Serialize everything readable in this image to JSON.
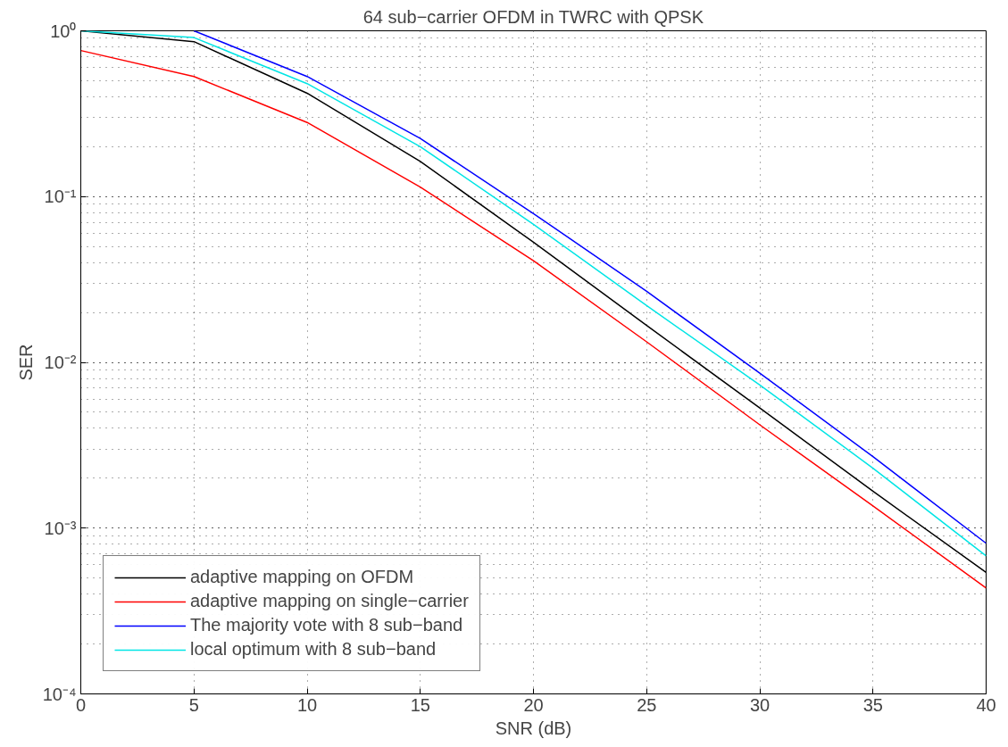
{
  "chart_data": {
    "type": "line",
    "title": "64 sub−carrier OFDM in TWRC with QPSK",
    "xlabel": "SNR (dB)",
    "ylabel": "SER",
    "x": [
      0,
      5,
      10,
      15,
      20,
      25,
      30,
      35,
      40
    ],
    "series": [
      {
        "name": "adaptive mapping on OFDM",
        "color": "#000000",
        "values": [
          1.0,
          0.86,
          0.42,
          0.163,
          0.053,
          0.0167,
          0.0053,
          0.00167,
          0.00054
        ]
      },
      {
        "name": "adaptive mapping on single−carrier",
        "color": "#ff0000",
        "values": [
          0.76,
          0.53,
          0.28,
          0.114,
          0.041,
          0.0133,
          0.0042,
          0.00136,
          0.000435
        ]
      },
      {
        "name": "The majority vote with 8 sub−band",
        "color": "#0000ff",
        "values": [
          null,
          1.0,
          0.53,
          0.224,
          0.079,
          0.0268,
          0.0086,
          0.0027,
          0.00081
        ]
      },
      {
        "name": "local optimum with 8 sub−band",
        "color": "#00e5e5",
        "values": [
          1.0,
          0.91,
          0.48,
          0.2,
          0.068,
          0.022,
          0.0073,
          0.0023,
          0.00068
        ]
      }
    ],
    "log": "y",
    "xlim": [
      0,
      40
    ],
    "ylim": [
      0.0001,
      1
    ],
    "xticks": [
      0,
      5,
      10,
      15,
      20,
      25,
      30,
      35,
      40
    ],
    "yticks": [
      {
        "value": 0.0001,
        "label": "10⁻⁴"
      },
      {
        "value": 0.001,
        "label": "10⁻³"
      },
      {
        "value": 0.01,
        "label": "10⁻²"
      },
      {
        "value": 0.1,
        "label": "10⁻¹"
      },
      {
        "value": 1,
        "label": "10⁰"
      }
    ],
    "grid": true,
    "legend": "bottom left",
    "marker": "none",
    "line_style": "solid"
  }
}
